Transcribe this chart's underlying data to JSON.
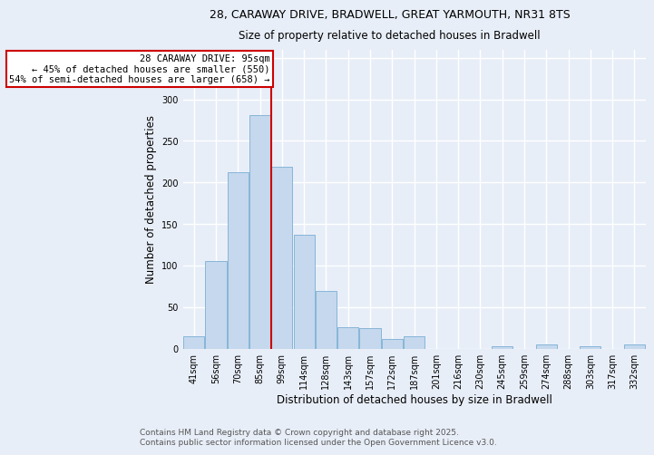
{
  "title_line1": "28, CARAWAY DRIVE, BRADWELL, GREAT YARMOUTH, NR31 8TS",
  "title_line2": "Size of property relative to detached houses in Bradwell",
  "xlabel": "Distribution of detached houses by size in Bradwell",
  "ylabel": "Number of detached properties",
  "categories": [
    "41sqm",
    "56sqm",
    "70sqm",
    "85sqm",
    "99sqm",
    "114sqm",
    "128sqm",
    "143sqm",
    "157sqm",
    "172sqm",
    "187sqm",
    "201sqm",
    "216sqm",
    "230sqm",
    "245sqm",
    "259sqm",
    "274sqm",
    "288sqm",
    "303sqm",
    "317sqm",
    "332sqm"
  ],
  "values": [
    15,
    105,
    212,
    281,
    219,
    137,
    69,
    26,
    25,
    11,
    15,
    0,
    0,
    0,
    3,
    0,
    5,
    0,
    3,
    0,
    5
  ],
  "bar_color": "#c5d8ed",
  "bar_edgecolor": "#7aaed4",
  "ylim": [
    0,
    360
  ],
  "yticks": [
    0,
    50,
    100,
    150,
    200,
    250,
    300,
    350
  ],
  "property_bin_index": 3.5,
  "annotation_text": "28 CARAWAY DRIVE: 95sqm\n← 45% of detached houses are smaller (550)\n54% of semi-detached houses are larger (658) →",
  "footer_line1": "Contains HM Land Registry data © Crown copyright and database right 2025.",
  "footer_line2": "Contains public sector information licensed under the Open Government Licence v3.0.",
  "background_color": "#e8eef8",
  "grid_color": "#ffffff",
  "annotation_box_color": "#ffffff",
  "annotation_box_edgecolor": "#cc0000",
  "vline_color": "#cc0000",
  "title_fontsize": 9,
  "subtitle_fontsize": 8.5,
  "axis_label_fontsize": 8.5,
  "tick_fontsize": 7,
  "annotation_fontsize": 7.5,
  "footer_fontsize": 6.5
}
